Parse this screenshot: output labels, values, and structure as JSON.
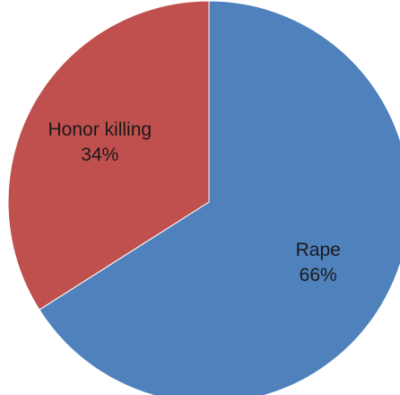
{
  "chart_data": {
    "type": "pie",
    "title": "",
    "slices": [
      {
        "label": "Rape",
        "percent_label": "66%",
        "value": 66,
        "color": "#4f81bd"
      },
      {
        "label": "Honor killing",
        "percent_label": "34%",
        "value": 34,
        "color": "#c0504d"
      }
    ],
    "start_angle_deg": 0,
    "direction": "clockwise",
    "legend": "none",
    "data_labels": "inside"
  }
}
